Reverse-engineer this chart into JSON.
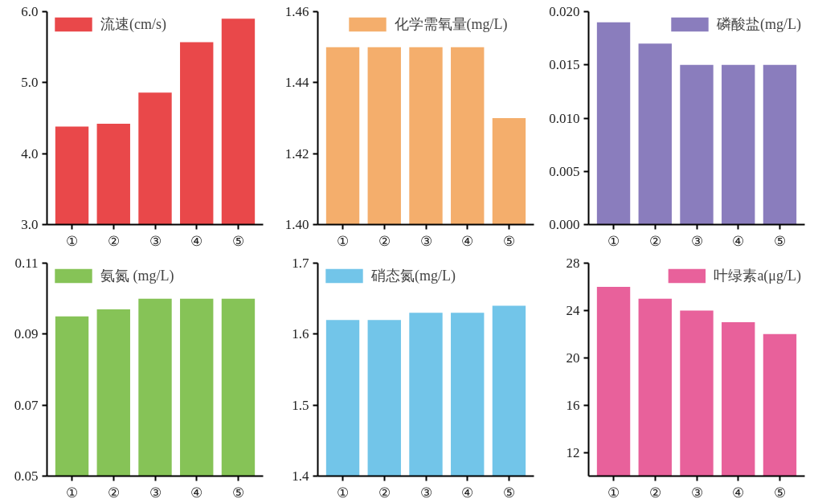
{
  "chart_data": [
    {
      "type": "bar",
      "categories": [
        "①",
        "②",
        "③",
        "④",
        "⑤"
      ],
      "series": [
        {
          "name": "流速(cm/s)",
          "color": "#e9484a",
          "values": [
            4.38,
            4.42,
            4.86,
            5.57,
            5.9
          ]
        }
      ],
      "ylim": [
        3.0,
        6.0
      ],
      "yticks": [
        {
          "value": 3,
          "label": "3.0"
        },
        {
          "value": 4,
          "label": "4.0"
        },
        {
          "value": 5,
          "label": "5.0"
        },
        {
          "value": 6,
          "label": "6.0"
        }
      ],
      "legend": "top left",
      "grid": false
    },
    {
      "type": "bar",
      "categories": [
        "①",
        "②",
        "③",
        "④",
        "⑤"
      ],
      "series": [
        {
          "name": "化学需氧量(mg/L)",
          "color": "#f4ae6c",
          "values": [
            1.45,
            1.45,
            1.45,
            1.45,
            1.43
          ]
        }
      ],
      "ylim": [
        1.4,
        1.46
      ],
      "yticks": [
        {
          "value": 1.4,
          "label": "1.40"
        },
        1.42,
        1.44,
        1.46
      ],
      "legend": "top",
      "grid": false
    },
    {
      "type": "bar",
      "categories": [
        "①",
        "②",
        "③",
        "④",
        "⑤"
      ],
      "series": [
        {
          "name": "磷酸盐(mg/L)",
          "color": "#8a7dbd",
          "values": [
            0.019,
            0.017,
            0.015,
            0.015,
            0.015
          ]
        }
      ],
      "ylim": [
        0,
        0.02
      ],
      "yticks": [
        {
          "value": 0,
          "label": "0.000"
        },
        0.005,
        {
          "value": 0.01,
          "label": "0.010"
        },
        0.015,
        {
          "value": 0.02,
          "label": "0.020"
        }
      ],
      "legend": "top right",
      "grid": false
    },
    {
      "type": "bar",
      "categories": [
        "①",
        "②",
        "③",
        "④",
        "⑤"
      ],
      "series": [
        {
          "name": "氨氮 (mg/L)",
          "color": "#86c357",
          "values": [
            0.095,
            0.097,
            0.1,
            0.1,
            0.1
          ]
        }
      ],
      "ylim": [
        0.05,
        0.11
      ],
      "yticks": [
        0.05,
        0.07,
        0.09,
        0.11
      ],
      "legend": "top left",
      "grid": false
    },
    {
      "type": "bar",
      "categories": [
        "①",
        "②",
        "③",
        "④",
        "⑤"
      ],
      "series": [
        {
          "name": "硝态氮(mg/L)",
          "color": "#72c5e9",
          "values": [
            1.62,
            1.62,
            1.63,
            1.63,
            1.64
          ]
        }
      ],
      "ylim": [
        1.4,
        1.7
      ],
      "yticks": [
        1.4,
        1.5,
        1.6,
        1.7
      ],
      "legend": "top left",
      "grid": false
    },
    {
      "type": "bar",
      "categories": [
        "①",
        "②",
        "③",
        "④",
        "⑤"
      ],
      "series": [
        {
          "name": "叶绿素a(μg/L)",
          "color": "#e8619b",
          "values": [
            26,
            25,
            24,
            23,
            22
          ]
        }
      ],
      "ylim": [
        10,
        28
      ],
      "yticks": [
        12,
        16,
        20,
        24,
        28
      ],
      "legend": "top right",
      "grid": false
    }
  ]
}
